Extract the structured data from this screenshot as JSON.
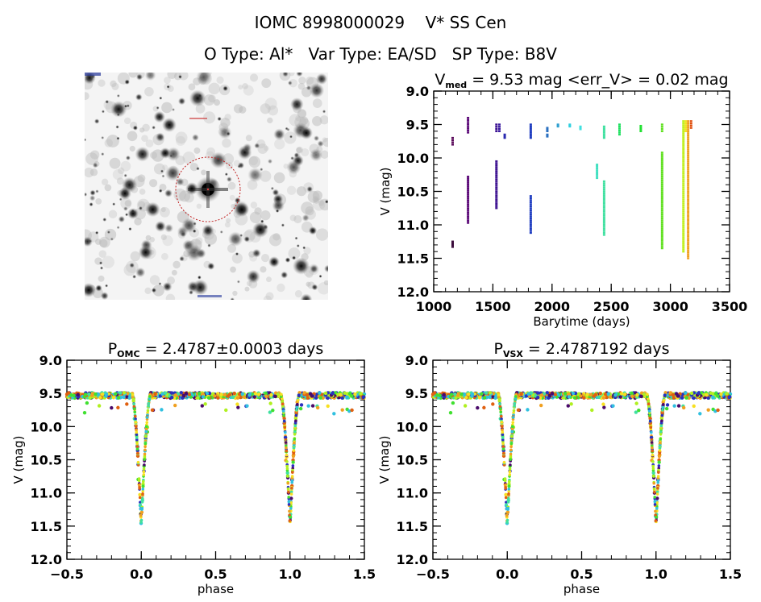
{
  "header": {
    "title": "IOMC 8998000029    V* SS Cen",
    "subtitle": "O Type: Al*   Var Type: EA/SD   SP Type: B8V"
  },
  "image_panel": {
    "description": "grayscale star field finder chart",
    "target_marker": "red dashed circle around central star",
    "target_color": "#cc2222"
  },
  "chart_data": [
    {
      "type": "scatter",
      "id": "lightcurve-time",
      "title_main": "V",
      "title_sub": "med",
      "title_rest": " = 9.53 mag <err_V> = 0.02 mag",
      "xlabel": "Barytime (days)",
      "ylabel": "V (mag)",
      "xlim": [
        1000,
        3500
      ],
      "ylim": [
        12.0,
        9.0
      ],
      "y_inverted": true,
      "xticks": [
        "1000",
        "1500",
        "2000",
        "2500",
        "3000",
        "3500"
      ],
      "xtick_values": [
        1000,
        1500,
        2000,
        2500,
        3000,
        3500
      ],
      "yticks": [
        "9.0",
        "9.5",
        "10.0",
        "10.5",
        "11.0",
        "11.5",
        "12.0"
      ],
      "ytick_values": [
        9.0,
        9.5,
        10.0,
        10.5,
        11.0,
        11.5,
        12.0
      ],
      "grid": false,
      "colormap": "time-rainbow (purple to red)",
      "series": [
        {
          "t": 1160,
          "mag": [
            9.7,
            9.8
          ],
          "color": "#5a0a5a"
        },
        {
          "t": 1160,
          "mag": [
            11.25,
            11.33
          ],
          "color": "#3a0a3a"
        },
        {
          "t": 1290,
          "mag": [
            9.4,
            9.62
          ],
          "color": "#5c0a78"
        },
        {
          "t": 1290,
          "mag": [
            10.28,
            10.97
          ],
          "color": "#5c0a78"
        },
        {
          "t": 1530,
          "mag": [
            9.5,
            9.6
          ],
          "color": "#3c1090"
        },
        {
          "t": 1530,
          "mag": [
            10.05,
            10.75
          ],
          "color": "#3c1090"
        },
        {
          "t": 1555,
          "mag": [
            9.5,
            9.6
          ],
          "color": "#3a1aa0"
        },
        {
          "t": 1600,
          "mag": [
            9.65,
            9.7
          ],
          "color": "#2a2ab0"
        },
        {
          "t": 1820,
          "mag": [
            9.5,
            9.7
          ],
          "color": "#1e3cc0"
        },
        {
          "t": 1820,
          "mag": [
            10.57,
            11.12
          ],
          "color": "#1e3cc0"
        },
        {
          "t": 1960,
          "mag": [
            9.55,
            9.6
          ],
          "color": "#2a70c0"
        },
        {
          "t": 1960,
          "mag": [
            9.65,
            9.68
          ],
          "color": "#2a70c0"
        },
        {
          "t": 2050,
          "mag": [
            9.5,
            9.53
          ],
          "color": "#30a0d0"
        },
        {
          "t": 2150,
          "mag": [
            9.5,
            9.53
          ],
          "color": "#30d0e0"
        },
        {
          "t": 2240,
          "mag": [
            9.53,
            9.57
          ],
          "color": "#40e0e0"
        },
        {
          "t": 2380,
          "mag": [
            10.1,
            10.3
          ],
          "color": "#40e0c0"
        },
        {
          "t": 2440,
          "mag": [
            9.53,
            9.7
          ],
          "color": "#40e0a0"
        },
        {
          "t": 2440,
          "mag": [
            10.35,
            11.15
          ],
          "color": "#40e0a0"
        },
        {
          "t": 2570,
          "mag": [
            9.5,
            9.65
          ],
          "color": "#20e060"
        },
        {
          "t": 2750,
          "mag": [
            9.52,
            9.6
          ],
          "color": "#20e030"
        },
        {
          "t": 2930,
          "mag": [
            9.5,
            9.6
          ],
          "color": "#60e020"
        },
        {
          "t": 2930,
          "mag": [
            9.92,
            11.35
          ],
          "color": "#60e020"
        },
        {
          "t": 3110,
          "mag": [
            9.45,
            11.4
          ],
          "color": "#c0f020"
        },
        {
          "t": 3130,
          "mag": [
            9.45,
            9.6
          ],
          "color": "#f0e020"
        },
        {
          "t": 3150,
          "mag": [
            9.45,
            11.5
          ],
          "color": "#f0a020"
        },
        {
          "t": 3175,
          "mag": [
            9.45,
            9.55
          ],
          "color": "#e05010"
        }
      ]
    },
    {
      "type": "scatter",
      "id": "phase-omc",
      "title_main": "P",
      "title_sub": "OMC",
      "title_rest": " = 2.4787±0.0003 days",
      "xlabel": "phase",
      "ylabel": "V (mag)",
      "xlim": [
        -0.5,
        1.5
      ],
      "ylim": [
        12.0,
        9.0
      ],
      "y_inverted": true,
      "xticks": [
        "−0.5",
        "0.0",
        "0.5",
        "1.0",
        "1.5"
      ],
      "xtick_values": [
        -0.5,
        0.0,
        0.5,
        1.0,
        1.5
      ],
      "yticks": [
        "9.0",
        "9.5",
        "10.0",
        "10.5",
        "11.0",
        "11.5",
        "12.0"
      ],
      "ytick_values": [
        9.0,
        9.5,
        10.0,
        10.5,
        11.0,
        11.5,
        12.0
      ],
      "grid": false,
      "period_days": 2.4787,
      "period_err_days": 0.0003,
      "baseline_mag": 9.53,
      "primary_minimum_mag": 11.5,
      "primary_minimum_phase": [
        0.0,
        1.0
      ],
      "eclipse_half_width_phase": 0.06
    },
    {
      "type": "scatter",
      "id": "phase-vsx",
      "title_main": "P",
      "title_sub": "VSX",
      "title_rest": " = 2.4787192 days",
      "xlabel": "phase",
      "ylabel": "V (mag)",
      "xlim": [
        -0.5,
        1.5
      ],
      "ylim": [
        12.0,
        9.0
      ],
      "y_inverted": true,
      "xticks": [
        "−0.5",
        "0.0",
        "0.5",
        "1.0",
        "1.5"
      ],
      "xtick_values": [
        -0.5,
        0.0,
        0.5,
        1.0,
        1.5
      ],
      "yticks": [
        "9.0",
        "9.5",
        "10.0",
        "10.5",
        "11.0",
        "11.5",
        "12.0"
      ],
      "ytick_values": [
        9.0,
        9.5,
        10.0,
        10.5,
        11.0,
        11.5,
        12.0
      ],
      "grid": false,
      "period_days": 2.4787192,
      "baseline_mag": 9.53,
      "primary_minimum_mag": 11.5,
      "primary_minimum_phase": [
        0.0,
        1.0
      ],
      "eclipse_half_width_phase": 0.06
    }
  ]
}
